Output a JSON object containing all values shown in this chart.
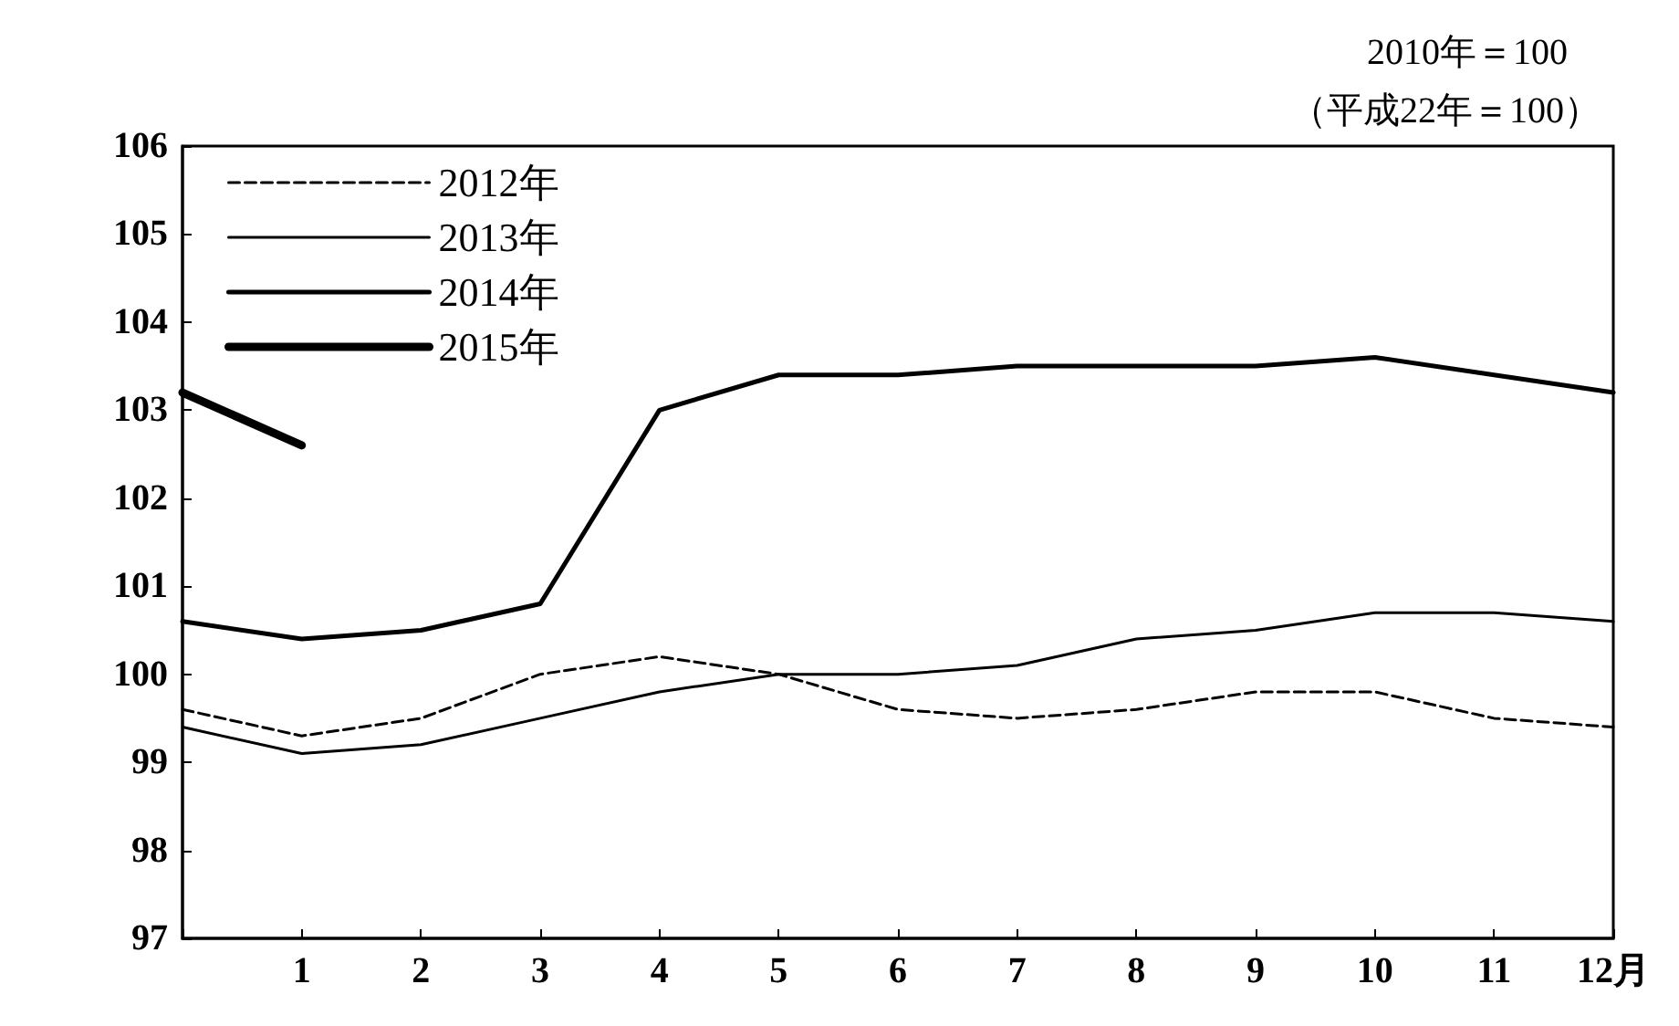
{
  "chart_data": {
    "type": "line",
    "title": "2010年＝100",
    "subtitle": "（平成22年＝100）",
    "x": [
      0,
      1,
      2,
      3,
      4,
      5,
      6,
      7,
      8,
      9,
      10,
      11,
      12
    ],
    "xlim": [
      0,
      12
    ],
    "xticks": [
      {
        "value": 0,
        "label": null
      },
      1,
      2,
      3,
      4,
      5,
      6,
      7,
      8,
      9,
      10,
      11,
      {
        "value": 12,
        "label": "12月"
      }
    ],
    "ylim": [
      97,
      106
    ],
    "yticks": [
      97,
      98,
      99,
      100,
      101,
      102,
      103,
      104,
      105,
      106
    ],
    "grid": false,
    "legend": "top left",
    "marker": "none",
    "series": [
      {
        "name": "2012年",
        "color": "#000000",
        "line_style": "dashed",
        "values": [
          99.6,
          99.3,
          99.5,
          100.0,
          100.2,
          100.0,
          99.6,
          99.5,
          99.6,
          99.8,
          99.8,
          99.5,
          99.4
        ]
      },
      {
        "name": "2013年",
        "color": "#000000",
        "line_style": "solid",
        "values": [
          99.4,
          99.1,
          99.2,
          99.5,
          99.8,
          100.0,
          100.0,
          100.1,
          100.4,
          100.5,
          100.7,
          100.7,
          100.6
        ]
      },
      {
        "name": "2014年",
        "color": "#000000",
        "line_style": "solid",
        "values": [
          100.6,
          100.4,
          100.5,
          100.8,
          103.0,
          103.4,
          103.4,
          103.5,
          103.5,
          103.5,
          103.6,
          103.4,
          103.2
        ]
      },
      {
        "name": "2015年",
        "color": "#000000",
        "line_style": "solid",
        "values": [
          103.2,
          102.6,
          null,
          null,
          null,
          null,
          null,
          null,
          null,
          null,
          null,
          null,
          null
        ]
      }
    ]
  }
}
